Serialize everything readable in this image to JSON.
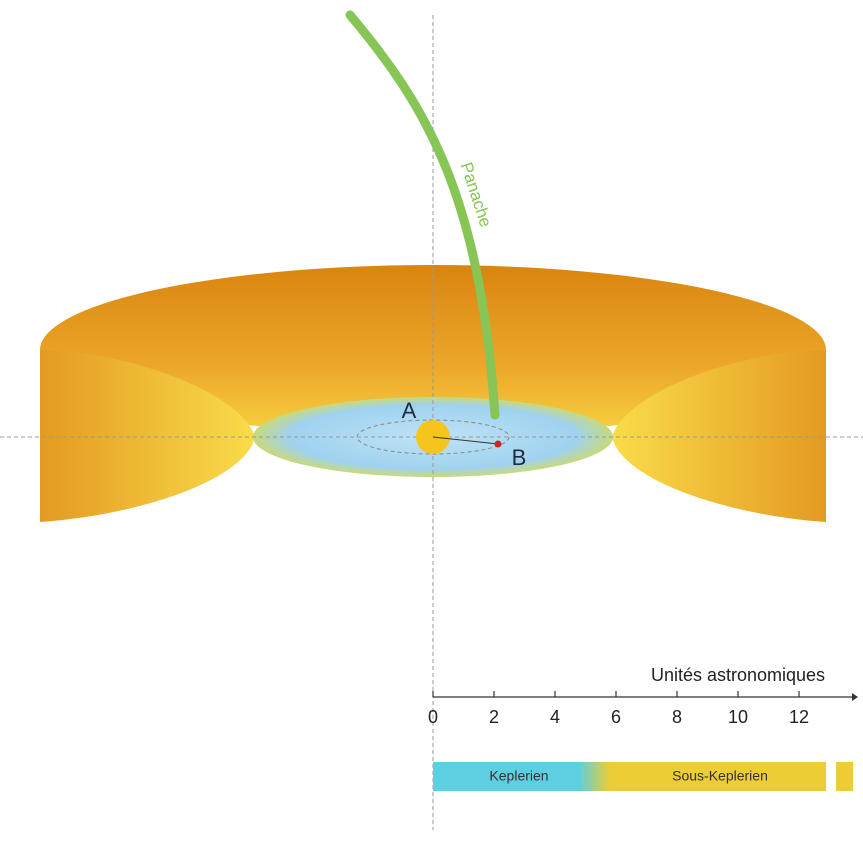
{
  "labels": {
    "plume": "Panache",
    "point_a": "A",
    "point_b": "B"
  },
  "axis": {
    "label": "Unités astronomiques",
    "ticks": [
      0,
      2,
      4,
      6,
      8,
      10,
      12
    ]
  },
  "regions": {
    "keplerian": "Keplerien",
    "sub_keplerian": "Sous-Keplerien"
  }
}
